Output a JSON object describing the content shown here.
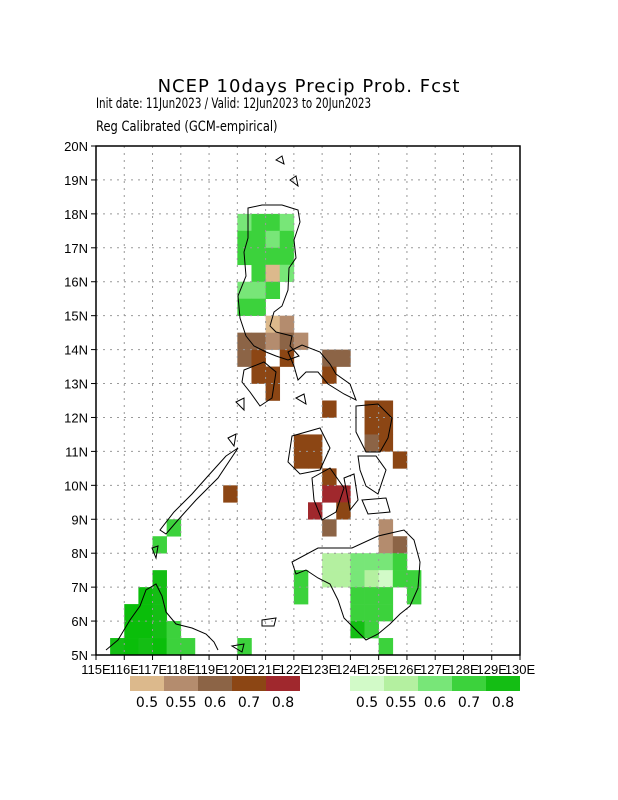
{
  "header": {
    "title": "NCEP 10days Precip Prob. Fcst",
    "subtitle": "Init date: 11Jun2023 / Valid: 12Jun2023 to 20Jun2023",
    "method": "Reg Calibrated (GCM-empirical)"
  },
  "axes": {
    "x_ticks": [
      "115E",
      "116E",
      "117E",
      "118E",
      "119E",
      "120E",
      "121E",
      "122E",
      "123E",
      "124E",
      "125E",
      "126E",
      "127E",
      "128E",
      "129E",
      "130E"
    ],
    "y_ticks": [
      "5N",
      "6N",
      "7N",
      "8N",
      "9N",
      "10N",
      "11N",
      "12N",
      "13N",
      "14N",
      "15N",
      "16N",
      "17N",
      "18N",
      "19N",
      "20N"
    ]
  },
  "legend": {
    "dry": {
      "colors": [
        "#dcb98c",
        "#b48c6e",
        "#8c6446",
        "#8c4614",
        "#a0282d"
      ],
      "labels": [
        "0.5",
        "0.55",
        "0.6",
        "0.7",
        "0.8"
      ]
    },
    "wet": {
      "colors": [
        "#d2fac8",
        "#b4f0a0",
        "#78e678",
        "#3cd23c",
        "#14be14"
      ],
      "labels": [
        "0.5",
        "0.55",
        "0.6",
        "0.7",
        "0.8"
      ]
    }
  },
  "map_data": {
    "lon_range": [
      115,
      130
    ],
    "lat_range": [
      5,
      20
    ],
    "grid_spacing_deg": 0.5,
    "cells": [
      [
        120.25,
        17.75,
        "w2"
      ],
      [
        120.75,
        17.75,
        "w3"
      ],
      [
        121.25,
        17.75,
        "w3"
      ],
      [
        121.75,
        17.75,
        "w2"
      ],
      [
        120.25,
        17.25,
        "w3"
      ],
      [
        120.75,
        17.25,
        "w3"
      ],
      [
        121.25,
        17.25,
        "w2"
      ],
      [
        121.75,
        17.25,
        "w3"
      ],
      [
        120.25,
        16.75,
        "w3"
      ],
      [
        120.75,
        16.75,
        "w3"
      ],
      [
        121.25,
        16.75,
        "w3"
      ],
      [
        121.75,
        16.75,
        "w3"
      ],
      [
        120.75,
        16.25,
        "w3"
      ],
      [
        121.25,
        16.25,
        "d0"
      ],
      [
        121.75,
        16.25,
        "w2"
      ],
      [
        120.25,
        15.75,
        "w2"
      ],
      [
        120.75,
        15.75,
        "w2"
      ],
      [
        121.25,
        15.75,
        "w3"
      ],
      [
        120.25,
        15.25,
        "w3"
      ],
      [
        120.75,
        15.25,
        "w3"
      ],
      [
        121.25,
        14.75,
        "d0"
      ],
      [
        121.75,
        14.75,
        "d1"
      ],
      [
        120.25,
        14.25,
        "d2"
      ],
      [
        120.75,
        14.25,
        "d2"
      ],
      [
        121.25,
        14.25,
        "d1"
      ],
      [
        121.75,
        14.25,
        "d2"
      ],
      [
        122.25,
        14.25,
        "d1"
      ],
      [
        120.25,
        13.75,
        "d2"
      ],
      [
        120.75,
        13.75,
        "d3"
      ],
      [
        121.75,
        13.75,
        "d3"
      ],
      [
        123.25,
        13.75,
        "d2"
      ],
      [
        123.75,
        13.75,
        "d2"
      ],
      [
        120.75,
        13.25,
        "d3"
      ],
      [
        121.25,
        13.25,
        "d3"
      ],
      [
        123.25,
        13.25,
        "d3"
      ],
      [
        121.25,
        12.75,
        "d3"
      ],
      [
        123.25,
        12.25,
        "d3"
      ],
      [
        124.75,
        12.25,
        "d3"
      ],
      [
        125.25,
        12.25,
        "d3"
      ],
      [
        124.75,
        11.75,
        "d3"
      ],
      [
        125.25,
        11.75,
        "d3"
      ],
      [
        122.25,
        11.25,
        "d3"
      ],
      [
        122.75,
        11.25,
        "d3"
      ],
      [
        124.75,
        11.25,
        "d2"
      ],
      [
        125.25,
        11.25,
        "d3"
      ],
      [
        122.25,
        10.75,
        "d3"
      ],
      [
        122.75,
        10.75,
        "d3"
      ],
      [
        125.75,
        10.75,
        "d3"
      ],
      [
        123.25,
        10.25,
        "d3"
      ],
      [
        119.75,
        9.75,
        "d3"
      ],
      [
        123.25,
        9.75,
        "d4"
      ],
      [
        123.75,
        9.75,
        "d4"
      ],
      [
        122.75,
        9.25,
        "d4"
      ],
      [
        123.75,
        9.25,
        "d3"
      ],
      [
        123.25,
        8.75,
        "d2"
      ],
      [
        125.25,
        8.75,
        "d1"
      ],
      [
        125.25,
        8.25,
        "d1"
      ],
      [
        125.75,
        8.25,
        "d2"
      ],
      [
        117.25,
        8.25,
        "w3"
      ],
      [
        123.25,
        7.75,
        "w1"
      ],
      [
        123.75,
        7.75,
        "w1"
      ],
      [
        124.25,
        7.75,
        "w2"
      ],
      [
        124.75,
        7.75,
        "w2"
      ],
      [
        125.25,
        7.75,
        "w2"
      ],
      [
        125.75,
        7.75,
        "w3"
      ],
      [
        122.25,
        7.25,
        "w3"
      ],
      [
        123.25,
        7.25,
        "w1"
      ],
      [
        123.75,
        7.25,
        "w1"
      ],
      [
        124.25,
        7.25,
        "w2"
      ],
      [
        124.75,
        7.25,
        "w1"
      ],
      [
        125.25,
        7.25,
        "w0"
      ],
      [
        125.75,
        7.25,
        "w3"
      ],
      [
        126.25,
        7.25,
        "w3"
      ],
      [
        122.25,
        6.75,
        "w3"
      ],
      [
        124.25,
        6.75,
        "w3"
      ],
      [
        124.75,
        6.75,
        "w3"
      ],
      [
        125.25,
        6.75,
        "w3"
      ],
      [
        126.25,
        6.75,
        "w3"
      ],
      [
        124.25,
        6.25,
        "w3"
      ],
      [
        124.75,
        6.25,
        "w3"
      ],
      [
        125.25,
        6.25,
        "w3"
      ],
      [
        124.25,
        5.75,
        "w4"
      ],
      [
        124.75,
        5.75,
        "w3"
      ],
      [
        125.25,
        5.25,
        "w3"
      ],
      [
        117.25,
        7.25,
        "w4"
      ],
      [
        116.75,
        6.75,
        "w5"
      ],
      [
        117.25,
        6.75,
        "w4"
      ],
      [
        116.25,
        6.25,
        "w5"
      ],
      [
        116.75,
        6.25,
        "w5"
      ],
      [
        117.25,
        6.25,
        "w4"
      ],
      [
        116.25,
        5.75,
        "w5"
      ],
      [
        116.75,
        5.75,
        "w5"
      ],
      [
        117.25,
        5.75,
        "w4"
      ],
      [
        117.75,
        5.75,
        "w3"
      ],
      [
        115.75,
        5.25,
        "w4"
      ],
      [
        116.25,
        5.25,
        "w5"
      ],
      [
        116.75,
        5.25,
        "w4"
      ],
      [
        117.25,
        5.25,
        "w5"
      ],
      [
        117.75,
        5.25,
        "w3"
      ],
      [
        118.25,
        5.25,
        "w3"
      ],
      [
        117.75,
        8.75,
        "w3"
      ],
      [
        120.25,
        5.25,
        "w3"
      ]
    ]
  }
}
